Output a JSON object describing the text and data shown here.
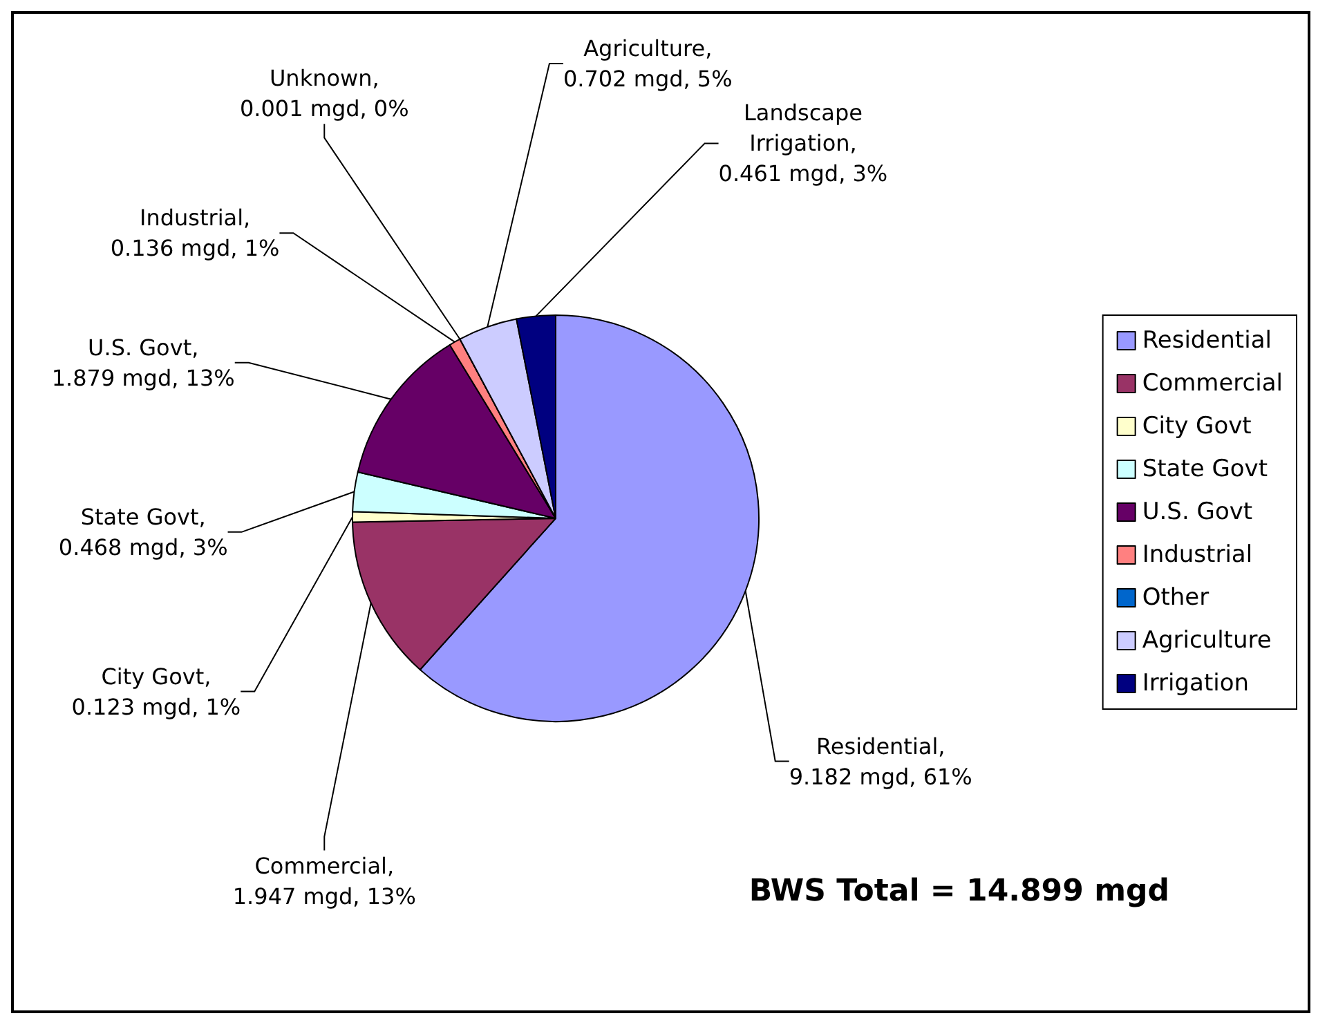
{
  "chart_data": {
    "type": "pie",
    "categories": [
      "Residential",
      "Commercial",
      "City Govt",
      "State Govt",
      "U.S. Govt",
      "Industrial",
      "Other",
      "Agriculture",
      "Irrigation"
    ],
    "values": [
      9.182,
      1.947,
      0.123,
      0.468,
      1.879,
      0.136,
      0.001,
      0.702,
      0.461
    ],
    "colors": [
      "#9999ff",
      "#993366",
      "#ffffcc",
      "#ccffff",
      "#660066",
      "#ff8080",
      "#0066cc",
      "#ccccff",
      "#000080"
    ],
    "value_labels": [
      "Residential,\n9.182 mgd, 61%",
      "Commercial,\n1.947 mgd, 13%",
      "City Govt,\n0.123 mgd, 1%",
      "State Govt,\n0.468 mgd, 3%",
      "U.S. Govt,\n1.879 mgd, 13%",
      "Industrial,\n0.136 mgd, 1%",
      "Unknown,\n0.001 mgd, 0%",
      "Agriculture,\n0.702 mgd, 5%",
      "Landscape\nIrrigation,\n0.461 mgd, 3%"
    ],
    "annotations": [
      "BWS Total = 14.899 mgd"
    ],
    "legend": "right"
  }
}
